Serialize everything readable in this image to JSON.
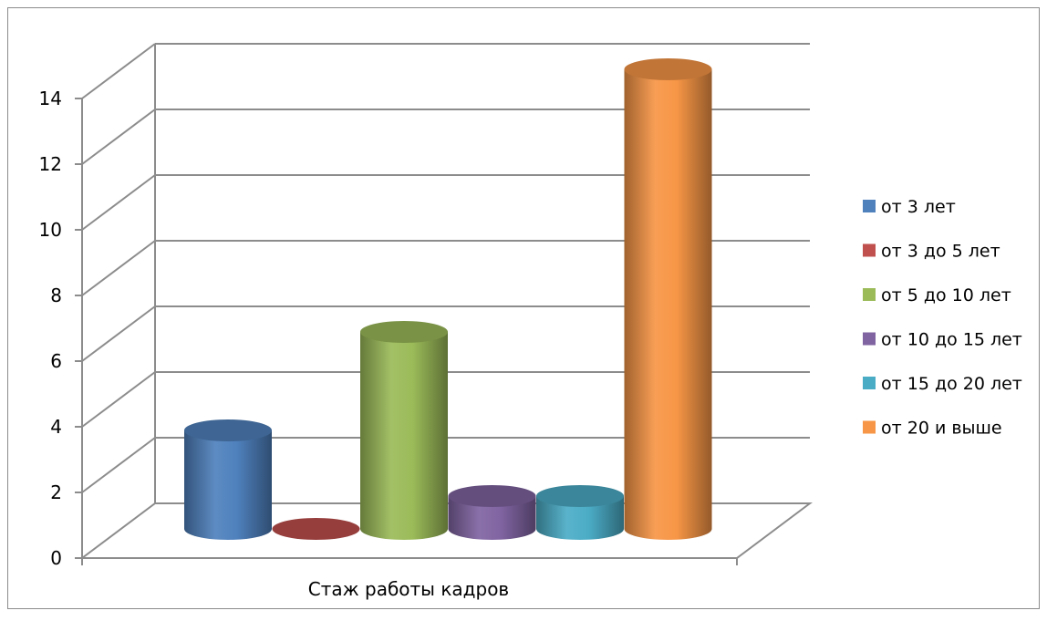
{
  "chart_data": {
    "type": "bar",
    "title": "",
    "xlabel": "",
    "ylabel": "",
    "ylim": [
      0,
      14
    ],
    "y_ticks": [
      "0",
      "2",
      "4",
      "6",
      "8",
      "10",
      "12",
      "14"
    ],
    "categories": [
      "Стаж работы кадров"
    ],
    "grid": true,
    "legend_position": "right",
    "series": [
      {
        "name": "от 3 лет",
        "color": "#4F81BD",
        "values": [
          3
        ]
      },
      {
        "name": "от 3 до 5 лет",
        "color": "#C0504D",
        "values": [
          0
        ]
      },
      {
        "name": "от 5 до 10 лет",
        "color": "#9BBB59",
        "values": [
          6
        ]
      },
      {
        "name": "от 10 до 15 лет",
        "color": "#8064A2",
        "values": [
          1
        ]
      },
      {
        "name": "от 15 до 20 лет",
        "color": "#4BACC6",
        "values": [
          1
        ]
      },
      {
        "name": "от 20 и выше",
        "color": "#F79646",
        "values": [
          14
        ]
      }
    ]
  }
}
